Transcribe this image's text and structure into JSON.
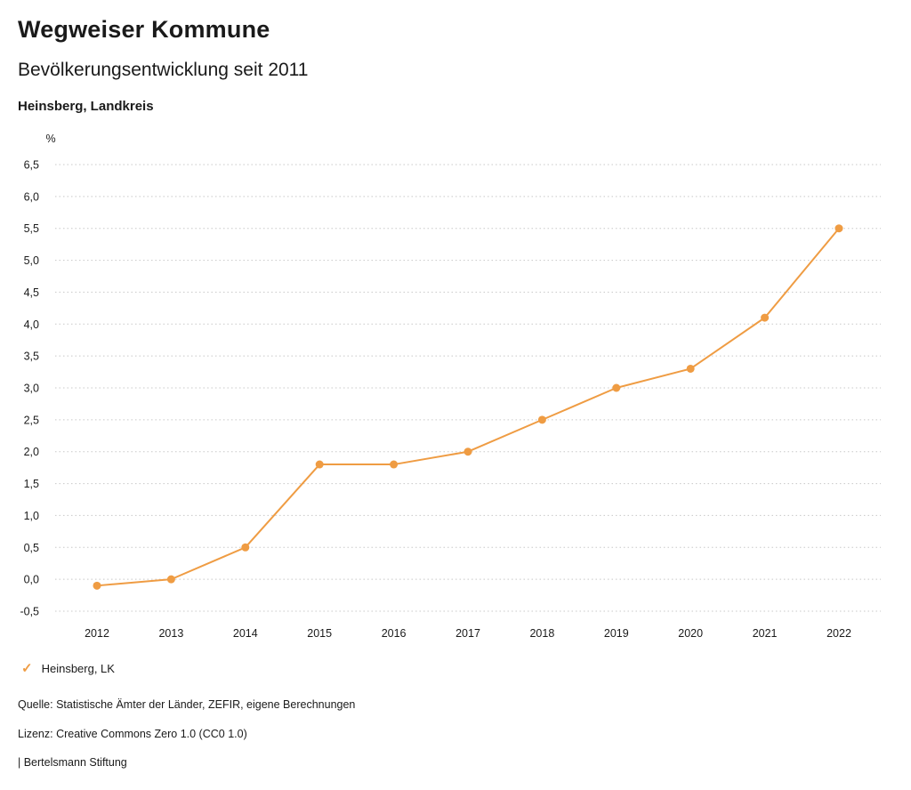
{
  "header": {
    "title": "Wegweiser Kommune",
    "subtitle": "Bevölkerungsentwicklung seit 2011",
    "region": "Heinsberg, Landkreis"
  },
  "legend": {
    "check_icon": "✓",
    "label": "Heinsberg, LK"
  },
  "footer": {
    "source": "Quelle: Statistische Ämter der Länder, ZEFIR, eigene Berechnungen",
    "license": "Lizenz: Creative Commons Zero 1.0 (CC0 1.0)",
    "attribution": "| Bertelsmann Stiftung"
  },
  "colors": {
    "series": "#EF9C43",
    "grid": "#c8c8c8",
    "text": "#1a1a1a"
  },
  "chart_data": {
    "type": "line",
    "title": "Bevölkerungsentwicklung seit 2011",
    "region": "Heinsberg, Landkreis",
    "x": [
      2012,
      2013,
      2014,
      2015,
      2016,
      2017,
      2018,
      2019,
      2020,
      2021,
      2022
    ],
    "series": [
      {
        "name": "Heinsberg, LK",
        "values": [
          -0.1,
          0.0,
          0.5,
          1.8,
          1.8,
          2.0,
          2.5,
          3.0,
          3.3,
          4.1,
          5.5
        ],
        "color": "#EF9C43"
      }
    ],
    "xlabel": "",
    "ylabel": "%",
    "ylim": [
      -0.5,
      6.5
    ],
    "ytick_step": 0.5,
    "decimal_separator": ",",
    "grid": true,
    "grid_style": "dotted",
    "legend_position": "bottom-left"
  }
}
